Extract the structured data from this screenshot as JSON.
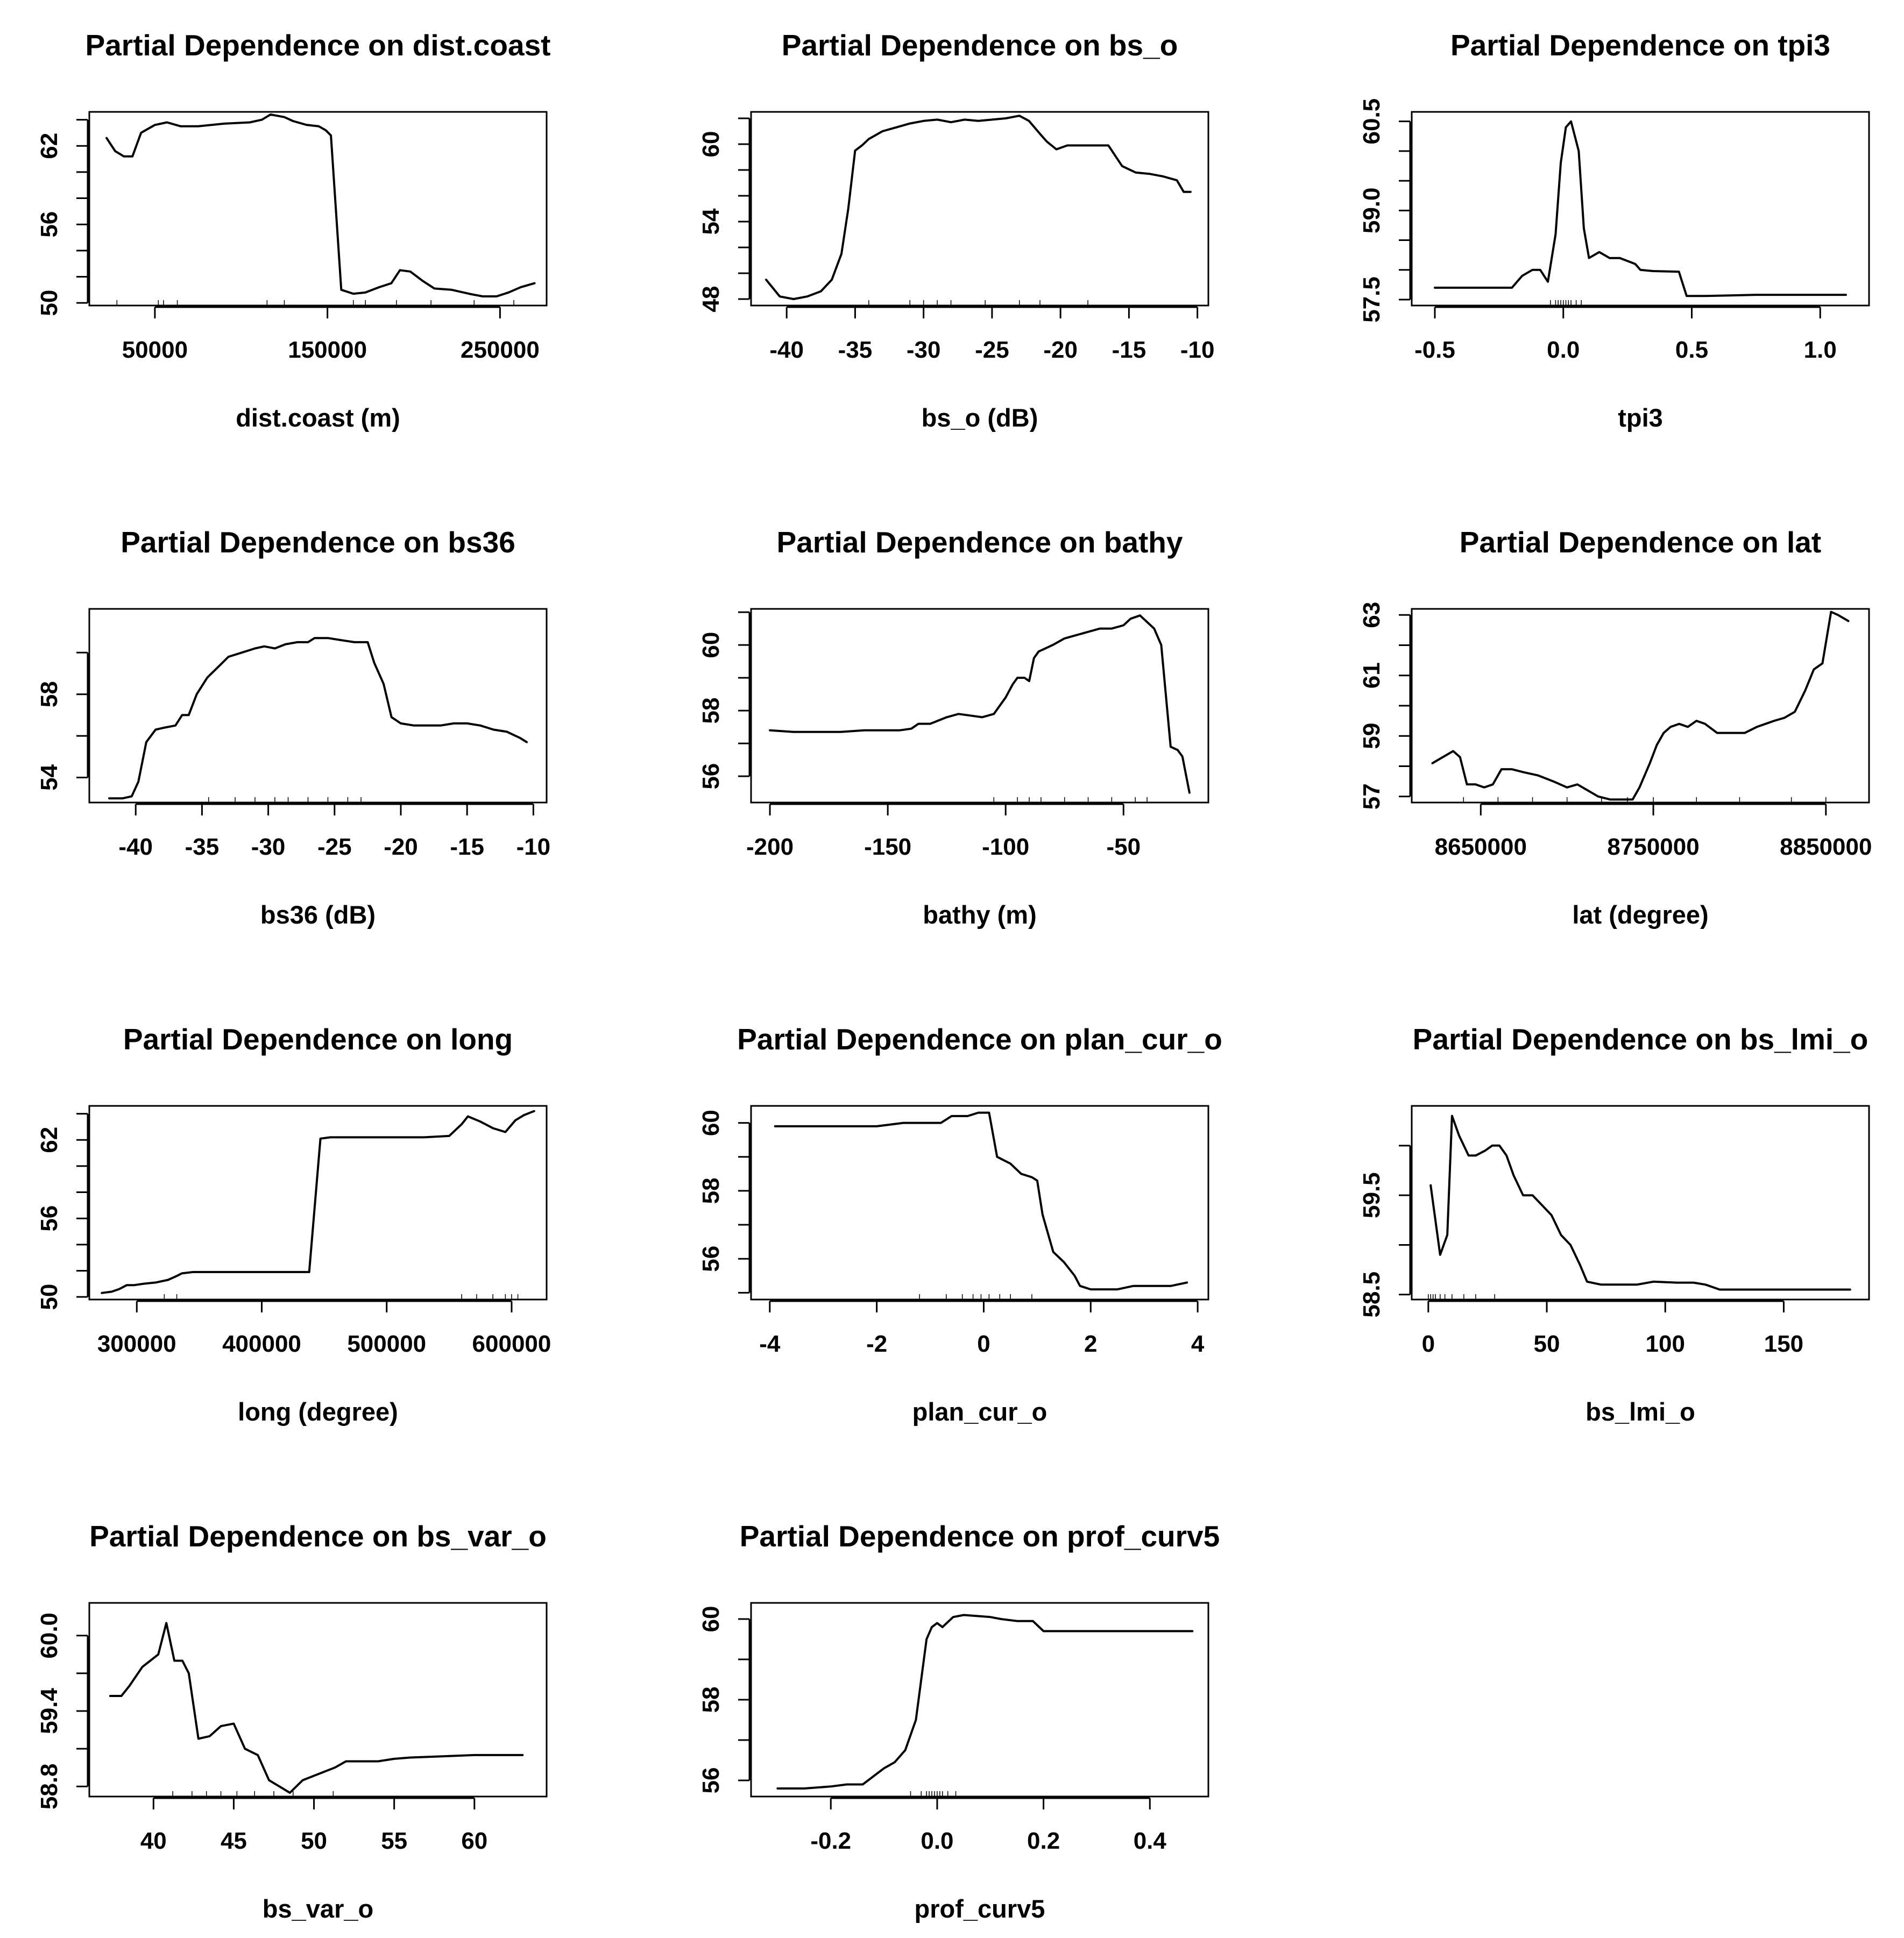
{
  "chart_data": [
    {
      "type": "line",
      "title": "Partial Dependence on dist.coast",
      "xlabel": "dist.coast (m)",
      "ylabel": "",
      "xlim": [
        12000,
        277000
      ],
      "ylim": [
        49.8,
        64.6
      ],
      "xticks": [
        50000,
        150000,
        250000
      ],
      "xtick_labels": [
        "50000",
        "150000",
        "250000"
      ],
      "yticks": [
        50,
        56,
        62
      ],
      "ytick_labels": [
        "50",
        "56",
        "62"
      ],
      "yminor": [
        52,
        54,
        58,
        60,
        64
      ],
      "x": [
        22000,
        27000,
        32000,
        37000,
        42000,
        50000,
        57000,
        65000,
        75000,
        90000,
        105000,
        112000,
        117000,
        125000,
        130000,
        138000,
        145000,
        149000,
        152000,
        158000,
        165000,
        172000,
        180000,
        187000,
        192000,
        198000,
        205000,
        212000,
        222000,
        232000,
        240000,
        248000,
        255000,
        262000,
        270000
      ],
      "y": [
        62.6,
        61.6,
        61.2,
        61.2,
        63.0,
        63.6,
        63.8,
        63.5,
        63.5,
        63.7,
        63.8,
        64.0,
        64.4,
        64.2,
        63.9,
        63.6,
        63.5,
        63.2,
        62.8,
        51.0,
        50.7,
        50.8,
        51.2,
        51.5,
        52.5,
        52.4,
        51.7,
        51.1,
        51.0,
        50.7,
        50.5,
        50.5,
        50.8,
        51.2,
        51.5
      ],
      "rug": [
        28000,
        52000,
        55000,
        63000,
        115000,
        125000,
        165000,
        172000,
        190000,
        210000,
        235000,
        258000
      ]
    },
    {
      "type": "line",
      "title": "Partial Dependence on bs_o",
      "xlabel": "bs_o (dB)",
      "ylabel": "",
      "xlim": [
        -42.6,
        -9.2
      ],
      "ylim": [
        47.5,
        62.5
      ],
      "xticks": [
        -40,
        -35,
        -30,
        -25,
        -20,
        -15,
        -10
      ],
      "xtick_labels": [
        "-40",
        "-35",
        "-30",
        "-25",
        "-20",
        "-15",
        "-10"
      ],
      "yticks": [
        48,
        54,
        60
      ],
      "ytick_labels": [
        "48",
        "54",
        "60"
      ],
      "yminor": [
        50,
        52,
        56,
        58,
        62
      ],
      "x": [
        -41.5,
        -40.5,
        -39.5,
        -38.5,
        -37.5,
        -36.7,
        -36,
        -35.5,
        -35,
        -34.5,
        -34,
        -33,
        -32,
        -31,
        -30,
        -29,
        -28,
        -27,
        -26,
        -25,
        -24,
        -23,
        -22.3,
        -21.5,
        -21,
        -20.3,
        -19.5,
        -18.5,
        -17.5,
        -16.5,
        -15.5,
        -14.5,
        -13.5,
        -12.5,
        -11.5,
        -11,
        -10.5
      ],
      "y": [
        49.5,
        48.2,
        48.0,
        48.2,
        48.6,
        49.5,
        51.5,
        55.0,
        59.5,
        59.9,
        60.4,
        61.0,
        61.3,
        61.6,
        61.8,
        61.9,
        61.7,
        61.9,
        61.8,
        61.9,
        62.0,
        62.2,
        61.8,
        60.8,
        60.2,
        59.6,
        59.9,
        59.9,
        59.9,
        59.9,
        58.3,
        57.8,
        57.7,
        57.5,
        57.2,
        56.3,
        56.3
      ],
      "rug": [
        -34,
        -31,
        -30,
        -29,
        -28,
        -25.5,
        -23,
        -21.5,
        -18
      ]
    },
    {
      "type": "line",
      "title": "Partial Dependence on tpi3",
      "xlabel": "tpi3",
      "ylabel": "",
      "xlim": [
        -0.59,
        1.19
      ],
      "ylim": [
        57.4,
        60.66
      ],
      "xticks": [
        -0.5,
        0.0,
        0.5,
        1.0
      ],
      "xtick_labels": [
        "-0.5",
        "0.0",
        "0.5",
        "1.0"
      ],
      "yticks": [
        57.5,
        59.0,
        60.5
      ],
      "ytick_labels": [
        "57.5",
        "59.0",
        "60.5"
      ],
      "yminor": [
        58.0,
        58.5,
        59.5,
        60.0
      ],
      "x": [
        -0.5,
        -0.42,
        -0.34,
        -0.27,
        -0.2,
        -0.16,
        -0.12,
        -0.09,
        -0.06,
        -0.03,
        -0.01,
        0.01,
        0.03,
        0.06,
        0.08,
        0.1,
        0.14,
        0.18,
        0.22,
        0.28,
        0.3,
        0.35,
        0.45,
        0.48,
        0.55,
        0.65,
        0.75,
        0.85,
        1.0,
        1.1
      ],
      "y": [
        57.7,
        57.7,
        57.7,
        57.7,
        57.7,
        57.9,
        58.0,
        58.0,
        57.8,
        58.6,
        59.8,
        60.4,
        60.5,
        60.0,
        58.7,
        58.2,
        58.3,
        58.2,
        58.2,
        58.1,
        58.0,
        57.98,
        57.97,
        57.56,
        57.56,
        57.57,
        57.58,
        57.58,
        57.58,
        57.58
      ],
      "rug": [
        -0.05,
        -0.03,
        -0.02,
        -0.01,
        0.0,
        0.01,
        0.02,
        0.03,
        0.05,
        0.07
      ]
    },
    {
      "type": "line",
      "title": "Partial Dependence on bs36",
      "xlabel": "bs36 (dB)",
      "ylabel": "",
      "xlim": [
        -43.5,
        -9.0
      ],
      "ylim": [
        52.8,
        62.1
      ],
      "xticks": [
        -40,
        -35,
        -30,
        -25,
        -20,
        -15,
        -10
      ],
      "xtick_labels": [
        "-40",
        "-35",
        "-30",
        "-25",
        "-20",
        "-15",
        "-10"
      ],
      "yticks": [
        54,
        58
      ],
      "ytick_labels": [
        "54",
        "58"
      ],
      "yminor": [
        56,
        60
      ],
      "x": [
        -42,
        -41,
        -40.3,
        -39.8,
        -39.2,
        -38.5,
        -37.8,
        -37,
        -36.5,
        -36,
        -35.4,
        -34.6,
        -33.8,
        -33,
        -32,
        -31,
        -30.3,
        -29.5,
        -28.7,
        -27.8,
        -27,
        -26.5,
        -25.5,
        -24.5,
        -23.5,
        -22.5,
        -22,
        -21.3,
        -20.7,
        -20,
        -19,
        -18,
        -17,
        -16,
        -15,
        -14,
        -13,
        -12,
        -11,
        -10.5
      ],
      "y": [
        53.0,
        53.0,
        53.1,
        53.8,
        55.7,
        56.3,
        56.4,
        56.5,
        57.0,
        57.0,
        58.0,
        58.8,
        59.3,
        59.8,
        60.0,
        60.2,
        60.3,
        60.2,
        60.4,
        60.5,
        60.5,
        60.7,
        60.7,
        60.6,
        60.5,
        60.5,
        59.5,
        58.5,
        56.9,
        56.6,
        56.5,
        56.5,
        56.5,
        56.6,
        56.6,
        56.5,
        56.3,
        56.2,
        55.9,
        55.7
      ],
      "rug": [
        -34.5,
        -32.5,
        -31,
        -29.5,
        -28.5,
        -27,
        -25.5,
        -24,
        -23
      ]
    },
    {
      "type": "line",
      "title": "Partial Dependence on bathy",
      "xlabel": "bathy (m)",
      "ylabel": "",
      "xlim": [
        -208,
        -14
      ],
      "ylim": [
        55.2,
        61.1
      ],
      "xticks": [
        -200,
        -150,
        -100,
        -50
      ],
      "xtick_labels": [
        "-200",
        "-150",
        "-100",
        "-50"
      ],
      "yticks": [
        56,
        58,
        60
      ],
      "ytick_labels": [
        "56",
        "58",
        "60"
      ],
      "yminor": [
        57,
        59,
        61
      ],
      "x": [
        -200,
        -190,
        -180,
        -170,
        -160,
        -150,
        -145,
        -140,
        -137,
        -132,
        -125,
        -120,
        -115,
        -110,
        -105,
        -100,
        -97,
        -95,
        -92,
        -90,
        -88,
        -86,
        -83,
        -80,
        -75,
        -70,
        -65,
        -60,
        -55,
        -50,
        -47,
        -43,
        -40,
        -37,
        -34,
        -30,
        -27,
        -25,
        -22
      ],
      "y": [
        57.4,
        57.35,
        57.35,
        57.35,
        57.4,
        57.4,
        57.4,
        57.45,
        57.6,
        57.6,
        57.8,
        57.9,
        57.85,
        57.8,
        57.9,
        58.4,
        58.8,
        59.0,
        59.0,
        58.9,
        59.6,
        59.8,
        59.9,
        60.0,
        60.2,
        60.3,
        60.4,
        60.5,
        60.5,
        60.6,
        60.8,
        60.9,
        60.7,
        60.5,
        60.0,
        56.9,
        56.8,
        56.6,
        55.5
      ],
      "rug": [
        -105,
        -95,
        -90,
        -85,
        -75,
        -65,
        -55,
        -45,
        -40
      ]
    },
    {
      "type": "line",
      "title": "Partial Dependence on lat",
      "xlabel": "lat (degree)",
      "ylabel": "",
      "xlim": [
        8610000,
        8875000
      ],
      "ylim": [
        56.8,
        63.2
      ],
      "xticks": [
        8650000,
        8750000,
        8850000
      ],
      "xtick_labels": [
        "8650000",
        "8750000",
        "8850000"
      ],
      "yticks": [
        57,
        59,
        61,
        63
      ],
      "ytick_labels": [
        "57",
        "59",
        "61",
        "63"
      ],
      "yminor": [
        58,
        60,
        62
      ],
      "x": [
        8622000,
        8628000,
        8634000,
        8638000,
        8642000,
        8647000,
        8652000,
        8657000,
        8662000,
        8668000,
        8675000,
        8683000,
        8692000,
        8700000,
        8706000,
        8712000,
        8718000,
        8725000,
        8732000,
        8738000,
        8742000,
        8748000,
        8752000,
        8756000,
        8760000,
        8765000,
        8770000,
        8775000,
        8780000,
        8787000,
        8795000,
        8803000,
        8810000,
        8815000,
        8820000,
        8826000,
        8832000,
        8838000,
        8843000,
        8848000,
        8853000,
        8857000,
        8863000
      ],
      "y": [
        58.1,
        58.3,
        58.5,
        58.3,
        57.4,
        57.4,
        57.3,
        57.4,
        57.9,
        57.9,
        57.8,
        57.7,
        57.5,
        57.3,
        57.4,
        57.2,
        57.0,
        56.9,
        56.9,
        56.9,
        57.3,
        58.1,
        58.7,
        59.1,
        59.3,
        59.4,
        59.3,
        59.5,
        59.4,
        59.1,
        59.1,
        59.1,
        59.3,
        59.4,
        59.5,
        59.6,
        59.8,
        60.5,
        61.2,
        61.4,
        63.1,
        63.0,
        62.8
      ],
      "rug": [
        8640000,
        8660000,
        8680000,
        8700000,
        8720000,
        8735000,
        8750000,
        8775000,
        8800000,
        8830000,
        8850000
      ]
    },
    {
      "type": "line",
      "title": "Partial Dependence on long",
      "xlabel": "long (degree)",
      "ylabel": "",
      "xlim": [
        262000,
        628000
      ],
      "ylim": [
        49.8,
        64.6
      ],
      "xticks": [
        300000,
        400000,
        500000,
        600000
      ],
      "xtick_labels": [
        "300000",
        "400000",
        "500000",
        "600000"
      ],
      "yticks": [
        50,
        56,
        62
      ],
      "ytick_labels": [
        "50",
        "56",
        "62"
      ],
      "yminor": [
        52,
        54,
        58,
        60,
        64
      ],
      "x": [
        272000,
        280000,
        286000,
        292000,
        298000,
        305000,
        315000,
        325000,
        332000,
        336000,
        345000,
        360000,
        380000,
        400000,
        420000,
        438000,
        447000,
        455000,
        470000,
        490000,
        510000,
        530000,
        550000,
        560000,
        565000,
        575000,
        585000,
        595000,
        603000,
        610000,
        618000
      ],
      "y": [
        50.3,
        50.4,
        50.6,
        50.9,
        50.9,
        51.0,
        51.1,
        51.3,
        51.6,
        51.8,
        51.9,
        51.9,
        51.9,
        51.9,
        51.9,
        51.9,
        62.1,
        62.2,
        62.2,
        62.2,
        62.2,
        62.2,
        62.3,
        63.2,
        63.8,
        63.4,
        62.9,
        62.6,
        63.5,
        63.9,
        64.2
      ],
      "rug": [
        322000,
        332000,
        560000,
        572000,
        585000,
        595000,
        600000,
        605000
      ]
    },
    {
      "type": "line",
      "title": "Partial Dependence on plan_cur_o",
      "xlabel": "plan_cur_o",
      "ylabel": "",
      "xlim": [
        -4.35,
        4.2
      ],
      "ylim": [
        54.8,
        60.5
      ],
      "xticks": [
        -4,
        -2,
        0,
        2,
        4
      ],
      "xtick_labels": [
        "-4",
        "-2",
        "0",
        "2",
        "4"
      ],
      "yticks": [
        56,
        58,
        60
      ],
      "ytick_labels": [
        "56",
        "58",
        "60"
      ],
      "yminor": [
        55,
        57,
        59
      ],
      "x": [
        -3.9,
        -3.5,
        -3.0,
        -2.5,
        -2.0,
        -1.5,
        -1.2,
        -0.8,
        -0.6,
        -0.3,
        -0.1,
        0.1,
        0.25,
        0.5,
        0.7,
        0.9,
        1.0,
        1.1,
        1.3,
        1.5,
        1.7,
        1.8,
        2.0,
        2.2,
        2.5,
        2.8,
        3.1,
        3.5,
        3.8
      ],
      "y": [
        59.9,
        59.9,
        59.9,
        59.9,
        59.9,
        60.0,
        60.0,
        60.0,
        60.2,
        60.2,
        60.3,
        60.3,
        59.0,
        58.8,
        58.5,
        58.4,
        58.3,
        57.3,
        56.2,
        55.9,
        55.5,
        55.2,
        55.1,
        55.1,
        55.1,
        55.2,
        55.2,
        55.2,
        55.3
      ],
      "rug": [
        -1.2,
        -0.7,
        -0.4,
        -0.2,
        -0.05,
        0.1,
        0.3,
        0.5,
        0.9
      ]
    },
    {
      "type": "line",
      "title": "Partial Dependence on bs_lmi_o",
      "xlabel": "bs_lmi_o",
      "ylabel": "",
      "xlim": [
        -7,
        186
      ],
      "ylim": [
        58.45,
        60.4
      ],
      "xticks": [
        0,
        50,
        100,
        150
      ],
      "xtick_labels": [
        "0",
        "50",
        "100",
        "150"
      ],
      "yticks": [
        58.5,
        59.5
      ],
      "ytick_labels": [
        "58.5",
        "59.5"
      ],
      "yminor": [
        59.0,
        60.0
      ],
      "x": [
        1,
        5,
        8,
        10,
        13,
        17,
        20,
        24,
        27,
        30,
        33,
        36,
        40,
        44,
        48,
        52,
        56,
        60,
        64,
        67,
        73,
        80,
        88,
        95,
        105,
        112,
        117,
        123,
        135,
        150,
        165,
        178
      ],
      "y": [
        59.6,
        58.9,
        59.1,
        60.3,
        60.1,
        59.9,
        59.9,
        59.95,
        60.0,
        60.0,
        59.9,
        59.7,
        59.5,
        59.5,
        59.4,
        59.3,
        59.1,
        59.0,
        58.8,
        58.63,
        58.6,
        58.6,
        58.6,
        58.63,
        58.62,
        58.62,
        58.6,
        58.55,
        58.55,
        58.55,
        58.55,
        58.55
      ],
      "rug": [
        0,
        1,
        2,
        3,
        5,
        7,
        10,
        15,
        20,
        28
      ]
    },
    {
      "type": "line",
      "title": "Partial Dependence on bs_var_o",
      "xlabel": "bs_var_o",
      "ylabel": "",
      "xlim": [
        36,
        64.5
      ],
      "ylim": [
        58.72,
        60.26
      ],
      "xticks": [
        40,
        45,
        50,
        55,
        60
      ],
      "xtick_labels": [
        "40",
        "45",
        "50",
        "55",
        "60"
      ],
      "yticks": [
        58.8,
        59.4,
        60.0
      ],
      "ytick_labels": [
        "58.8",
        "59.4",
        "60.0"
      ],
      "yminor": [
        59.1,
        59.7
      ],
      "x": [
        37.3,
        38,
        38.5,
        39.3,
        39.8,
        40.3,
        40.8,
        41.3,
        41.8,
        42.2,
        42.8,
        43.5,
        44.2,
        45,
        45.7,
        46.5,
        47.2,
        48.5,
        49.3,
        50.3,
        51.3,
        52,
        53,
        54,
        55,
        56,
        58,
        60,
        63
      ],
      "y": [
        59.52,
        59.52,
        59.6,
        59.75,
        59.8,
        59.85,
        60.1,
        59.8,
        59.8,
        59.7,
        59.18,
        59.2,
        59.28,
        59.3,
        59.1,
        59.05,
        58.85,
        58.75,
        58.85,
        58.9,
        58.95,
        59.0,
        59.0,
        59.0,
        59.02,
        59.03,
        59.04,
        59.05,
        59.05
      ],
      "rug": [
        41.2,
        42.4,
        43.3,
        44.2,
        45.2,
        46.3,
        47.5,
        48.7,
        51.2
      ]
    },
    {
      "type": "line",
      "title": "Partial Dependence on prof_curv5",
      "xlabel": "prof_curv5",
      "ylabel": "",
      "xlim": [
        -0.35,
        0.51
      ],
      "ylim": [
        55.6,
        60.4
      ],
      "xticks": [
        -0.2,
        0.0,
        0.2,
        0.4
      ],
      "xtick_labels": [
        "-0.2",
        "0.0",
        "0.2",
        "0.4"
      ],
      "yticks": [
        56,
        58,
        60
      ],
      "ytick_labels": [
        "56",
        "58",
        "60"
      ],
      "yminor": [
        57,
        59
      ],
      "x": [
        -0.3,
        -0.25,
        -0.2,
        -0.17,
        -0.14,
        -0.12,
        -0.1,
        -0.08,
        -0.06,
        -0.04,
        -0.03,
        -0.02,
        -0.01,
        0.0,
        0.01,
        0.03,
        0.05,
        0.1,
        0.12,
        0.15,
        0.18,
        0.2,
        0.25,
        0.3,
        0.35,
        0.4,
        0.48
      ],
      "y": [
        55.8,
        55.8,
        55.85,
        55.9,
        55.9,
        56.1,
        56.3,
        56.45,
        56.75,
        57.5,
        58.5,
        59.5,
        59.8,
        59.9,
        59.8,
        60.05,
        60.1,
        60.05,
        60.0,
        59.95,
        59.95,
        59.7,
        59.7,
        59.7,
        59.7,
        59.7,
        59.7
      ],
      "rug": [
        -0.05,
        -0.03,
        -0.02,
        -0.015,
        -0.01,
        -0.005,
        0.0,
        0.005,
        0.01,
        0.02,
        0.035
      ]
    }
  ]
}
